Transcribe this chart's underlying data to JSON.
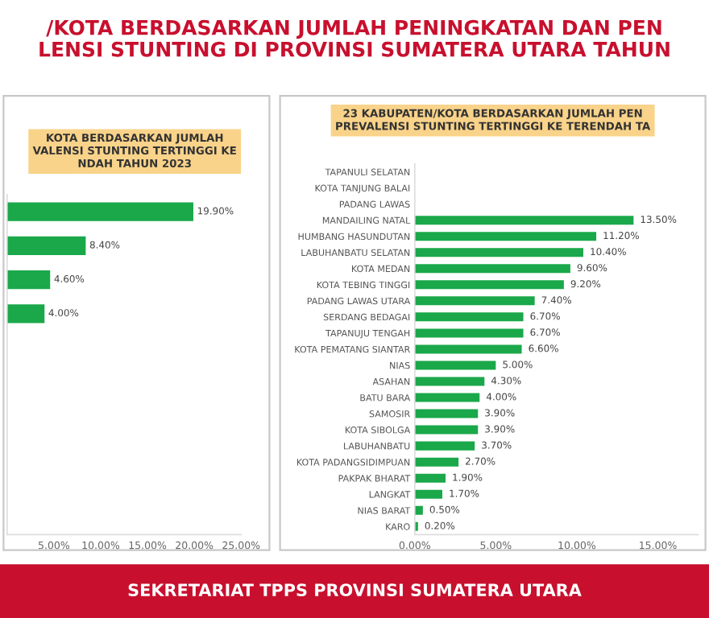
{
  "chart_data": [
    {
      "type": "other",
      "title": "/KOTA BERDASARKAN JUMLAH PENINGKATAN DAN PEN\nLENSI STUNTING DI PROVINSI SUMATERA UTARA TAHUN",
      "annotations": [
        "SEKRETARIAT TPPS PROVINSI SUMATERA UTARA"
      ]
    },
    {
      "type": "bar",
      "orientation": "horizontal",
      "title": "KOTA BERDASARKAN JUMLAH\nVALENSI STUNTING TERTINGGI KE\nNDAH TAHUN 2023",
      "categories": [
        null,
        null,
        null,
        null,
        null,
        null,
        null,
        null,
        null,
        null
      ],
      "values": [
        19.9,
        8.4,
        4.6,
        4.0,
        null,
        null,
        null,
        null,
        null,
        null
      ],
      "value_labels": [
        "19.90%",
        "8.40%",
        "4.60%",
        "4.00%",
        null,
        null,
        null,
        null,
        null,
        null
      ],
      "color": "#1aa84a",
      "xlim": [
        0,
        25
      ],
      "xticks": [
        {
          "value": 0,
          "label": null
        },
        {
          "value": 5,
          "label": "5.00%"
        },
        {
          "value": 10,
          "label": "10.00%"
        },
        {
          "value": 15,
          "label": "15.00%"
        },
        {
          "value": 20,
          "label": "20.00%"
        },
        {
          "value": 25,
          "label": "25.00%"
        }
      ],
      "tick_labels": "x"
    },
    {
      "type": "bar",
      "orientation": "horizontal",
      "title": "23 KABUPATEN/KOTA BERDASARKAN JUMLAH PEN\nPREVALENSI STUNTING TERTINGGI KE TERENDAH TA",
      "categories": [
        "TAPANULI SELATAN",
        "KOTA TANJUNG BALAI",
        "PADANG LAWAS",
        "MANDAILING NATAL",
        "HUMBANG HASUNDUTAN",
        "LABUHANBATU SELATAN",
        "KOTA MEDAN",
        "KOTA TEBING TINGGI",
        "PADANG LAWAS UTARA",
        "SERDANG BEDAGAI",
        "TAPANUJU TENGAH",
        "KOTA PEMATANG SIANTAR",
        "NIAS",
        "ASAHAN",
        "BATU BARA",
        "SAMOSIR",
        "KOTA SIBOLGA",
        "LABUHANBATU",
        "KOTA PADANGSIDIMPUAN",
        "PAKPAK BHARAT",
        "LANGKAT",
        "NIAS BARAT",
        "KARO"
      ],
      "values": [
        null,
        null,
        null,
        13.5,
        11.2,
        10.4,
        9.6,
        9.2,
        7.4,
        6.7,
        6.7,
        6.6,
        5.0,
        4.3,
        4.0,
        3.9,
        3.9,
        3.7,
        2.7,
        1.9,
        1.7,
        0.5,
        0.2
      ],
      "value_labels": [
        null,
        null,
        null,
        "13.50%",
        "11.20%",
        "10.40%",
        "9.60%",
        "9.20%",
        "7.40%",
        "6.70%",
        "6.70%",
        "6.60%",
        "5.00%",
        "4.30%",
        "4.00%",
        "3.90%",
        "3.90%",
        "3.70%",
        "2.70%",
        "1.90%",
        "1.70%",
        "0.50%",
        "0.20%"
      ],
      "color": "#1aa84a",
      "xlim": [
        0,
        17.5
      ],
      "xticks": [
        {
          "value": 0,
          "label": "0.00%"
        },
        {
          "value": 5,
          "label": "5.00%"
        },
        {
          "value": 10,
          "label": "10.00%"
        },
        {
          "value": 15,
          "label": "15.00%"
        }
      ]
    }
  ]
}
